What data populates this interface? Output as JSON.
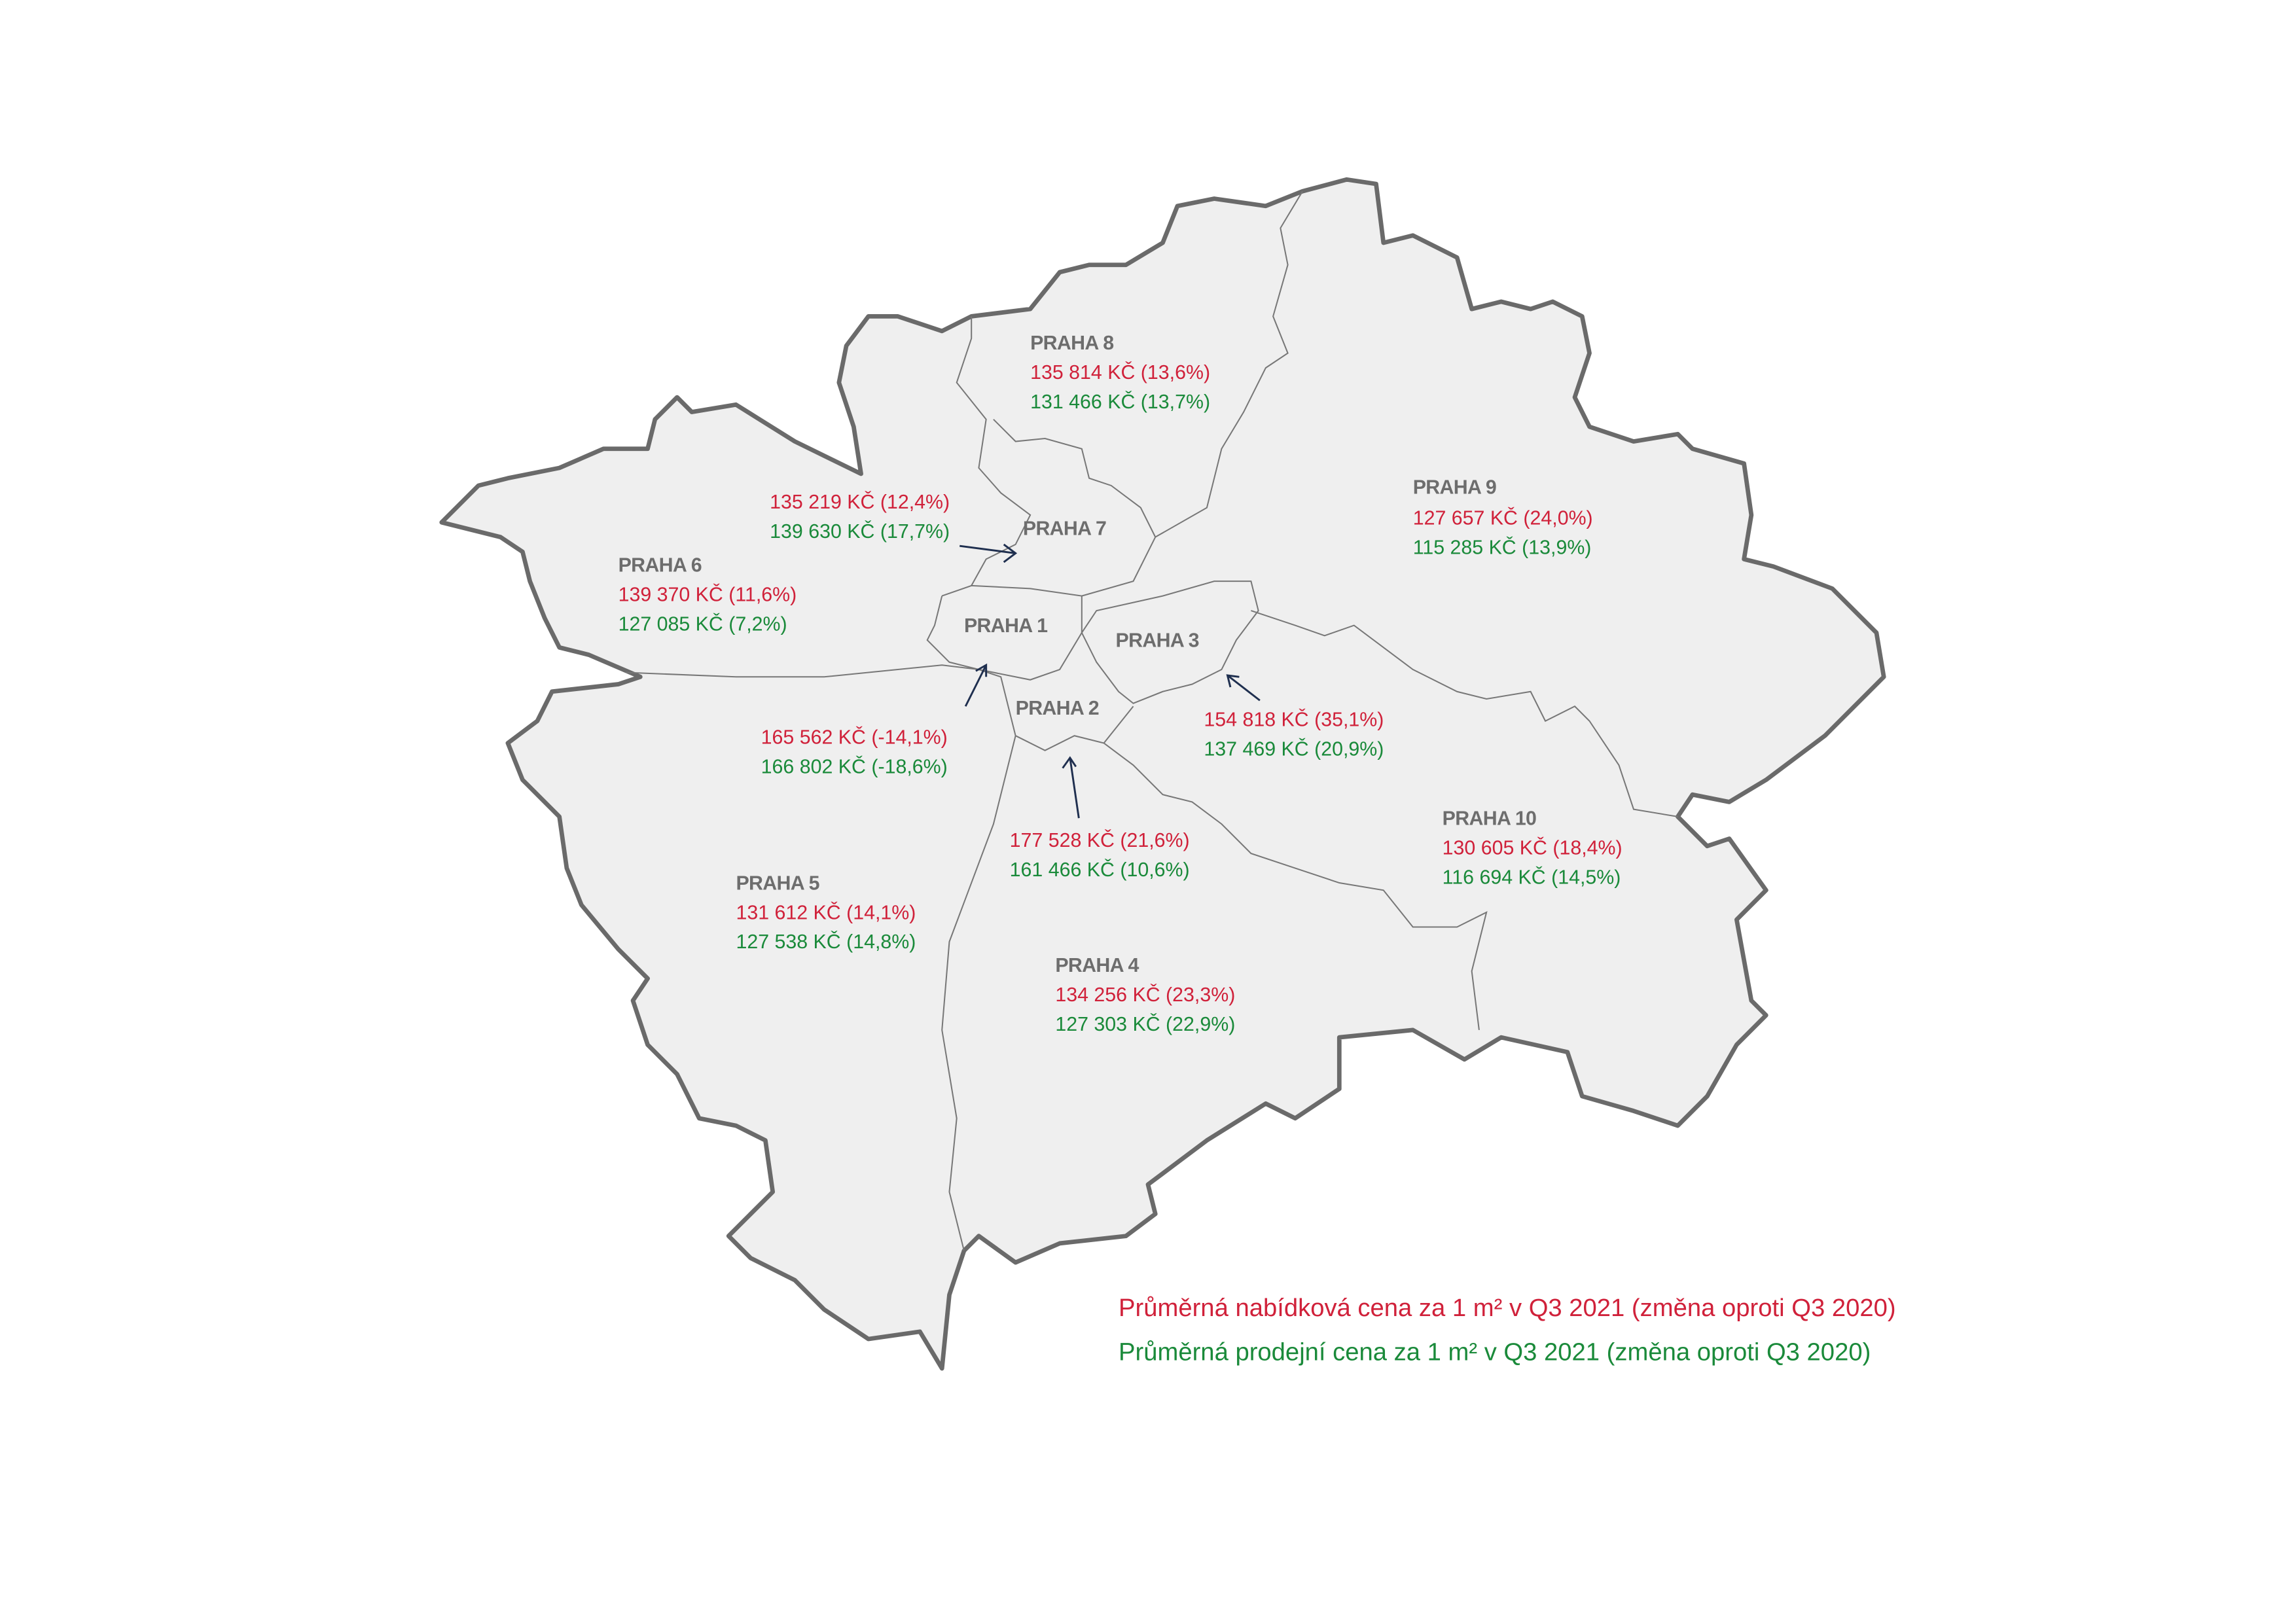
{
  "districts": [
    {
      "name": "PRAHA 8",
      "offer": "135 814 KČ (13,6%)",
      "sale": "131 466 KČ (13,7%)"
    },
    {
      "name": "PRAHA 7",
      "offer": "135 219 KČ (12,4%)",
      "sale": "139 630 KČ (17,7%)"
    },
    {
      "name": "PRAHA 6",
      "offer": "139 370 KČ (11,6%)",
      "sale": "127 085 KČ (7,2%)"
    },
    {
      "name": "PRAHA 1",
      "offer": "165 562 KČ (-14,1%)",
      "sale": "166 802 KČ (-18,6%)"
    },
    {
      "name": "PRAHA 3",
      "offer": "154 818 KČ (35,1%)",
      "sale": "137 469 KČ (20,9%)"
    },
    {
      "name": "PRAHA 2",
      "offer": "177 528 KČ (21,6%)",
      "sale": "161 466 KČ (10,6%)"
    },
    {
      "name": "PRAHA 9",
      "offer": "127 657 KČ (24,0%)",
      "sale": "115 285 KČ (13,9%)"
    },
    {
      "name": "PRAHA 10",
      "offer": "130 605 KČ (18,4%)",
      "sale": "116 694 KČ (14,5%)"
    },
    {
      "name": "PRAHA 5",
      "offer": "131 612 KČ (14,1%)",
      "sale": "127 538 KČ (14,8%)"
    },
    {
      "name": "PRAHA 4",
      "offer": "134 256 KČ (23,3%)",
      "sale": "127 303 KČ (22,9%)"
    }
  ],
  "legend": {
    "offer": "Průměrná nabídková cena za 1 m² v Q3 2021 (změna oproti Q3 2020)",
    "sale": "Průměrná prodejní cena za 1 m² v Q3 2021 (změna oproti Q3 2020)"
  }
}
